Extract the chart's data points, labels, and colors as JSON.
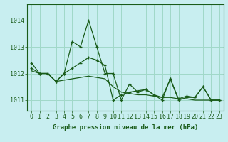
{
  "title": "Graphe pression niveau de la mer (hPa)",
  "background_color": "#c8eef0",
  "grid_color": "#a0d8c8",
  "line_color": "#1a5c1a",
  "x_values": [
    0,
    1,
    2,
    3,
    4,
    5,
    6,
    7,
    8,
    9,
    10,
    11,
    12,
    13,
    14,
    15,
    16,
    17,
    18,
    19,
    20,
    21,
    22,
    23
  ],
  "series1": [
    1012.4,
    1012.0,
    1012.0,
    1011.7,
    1012.0,
    1013.2,
    1013.0,
    1014.0,
    1013.0,
    1012.0,
    1012.0,
    1011.0,
    1011.6,
    1011.3,
    1011.4,
    1011.2,
    1011.0,
    1011.8,
    1011.0,
    1011.1,
    1011.1,
    1011.5,
    1011.0,
    1011.0
  ],
  "series2": [
    1012.2,
    1012.0,
    1012.0,
    1011.7,
    1012.0,
    1012.2,
    1012.4,
    1012.6,
    1012.5,
    1012.3,
    1011.0,
    1011.2,
    1011.3,
    1011.35,
    1011.4,
    1011.2,
    1011.1,
    1011.8,
    1011.05,
    1011.15,
    1011.1,
    1011.5,
    1011.0,
    1011.0
  ],
  "series3": [
    1012.1,
    1012.0,
    1012.0,
    1011.7,
    1011.75,
    1011.8,
    1011.85,
    1011.9,
    1011.85,
    1011.8,
    1011.5,
    1011.3,
    1011.25,
    1011.2,
    1011.2,
    1011.15,
    1011.1,
    1011.1,
    1011.05,
    1011.05,
    1011.0,
    1011.0,
    1011.0,
    1011.0
  ],
  "ylim": [
    1010.6,
    1014.6
  ],
  "yticks": [
    1011,
    1012,
    1013,
    1014
  ],
  "tick_fontsize": 6,
  "title_fontsize": 6.5
}
